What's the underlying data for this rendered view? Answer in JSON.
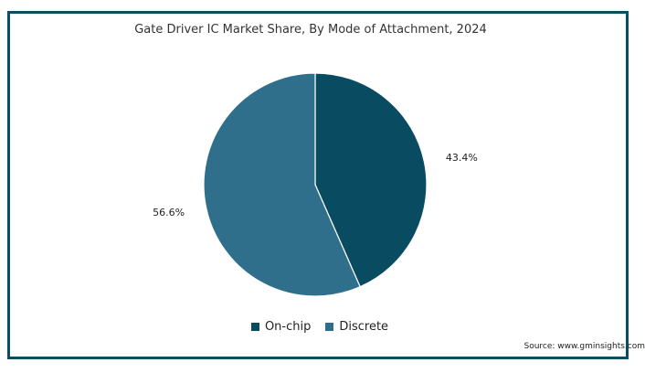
{
  "chart_data": {
    "type": "pie",
    "title": "Gate Driver IC Market Share, By Mode of Attachment, 2024",
    "categories": [
      "On-chip",
      "Discrete"
    ],
    "values": [
      43.4,
      56.6
    ],
    "value_labels": [
      "43.4%",
      "56.6%"
    ],
    "colors": [
      "#094c62",
      "#306f8c"
    ],
    "legend_position": "bottom",
    "source": "Source: www.gminsights.com"
  }
}
